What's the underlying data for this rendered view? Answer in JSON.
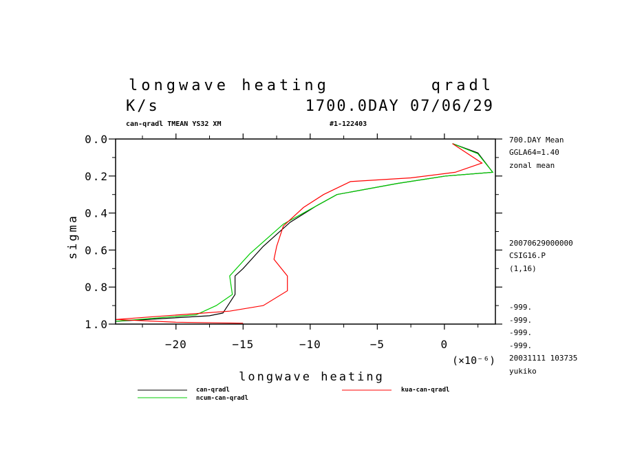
{
  "header": {
    "title_left": "longwave heating",
    "title_right": "qradl",
    "units": "K/s",
    "date_stamp": "1700.0DAY 07/06/29",
    "subtitle_left": "can-qradl TMEAN YS32 XM",
    "subtitle_right": "#1-122403"
  },
  "side_info": {
    "top": [
      "700.DAY Mean",
      "GGLA64=1.40",
      "zonal mean"
    ],
    "middle": [
      "20070629000000",
      "CSIG16.P",
      "(1,16)"
    ],
    "bottom": [
      "-999.",
      "-999.",
      "-999.",
      "-999.",
      "20031111 103735",
      "yukiko"
    ]
  },
  "chart_data": {
    "type": "line",
    "title": "longwave heating",
    "xlabel": "longwave heating",
    "ylabel": "sigma",
    "x_scale_label": "(×10⁻⁶)",
    "x_scale_exponent": -6,
    "xlim": [
      -24.5,
      3.8
    ],
    "ylim": [
      1.0,
      0.0
    ],
    "x_ticks": [
      -20,
      -15,
      -10,
      -5,
      0
    ],
    "x_tick_labels": [
      "−20",
      "−15",
      "−10",
      "−5",
      "0"
    ],
    "y_ticks": [
      0.0,
      0.2,
      0.4,
      0.6,
      0.8,
      1.0
    ],
    "y_tick_labels": [
      "0.0",
      "0.2",
      "0.4",
      "0.6",
      "0.8",
      "1.0"
    ],
    "series": [
      {
        "name": "can-qradl",
        "color": "#000000",
        "points": [
          [
            0.6,
            0.025
          ],
          [
            2.5,
            0.075
          ],
          [
            3.6,
            0.18
          ],
          [
            0.1,
            0.2
          ],
          [
            -3.5,
            0.24
          ],
          [
            -8.0,
            0.3
          ],
          [
            -9.5,
            0.36
          ],
          [
            -11.5,
            0.45
          ],
          [
            -13.5,
            0.58
          ],
          [
            -15.0,
            0.7
          ],
          [
            -15.6,
            0.74
          ],
          [
            -15.6,
            0.84
          ],
          [
            -16.5,
            0.94
          ],
          [
            -17.5,
            0.955
          ],
          [
            -24.5,
            0.985
          ]
        ]
      },
      {
        "name": "ncum-can-qradl",
        "color": "#00cc00",
        "points": [
          [
            0.6,
            0.025
          ],
          [
            2.5,
            0.08
          ],
          [
            3.6,
            0.18
          ],
          [
            0.1,
            0.2
          ],
          [
            -3.5,
            0.24
          ],
          [
            -8.0,
            0.3
          ],
          [
            -10.0,
            0.38
          ],
          [
            -12.0,
            0.46
          ],
          [
            -14.5,
            0.62
          ],
          [
            -16.0,
            0.74
          ],
          [
            -15.8,
            0.84
          ],
          [
            -17.0,
            0.9
          ],
          [
            -18.5,
            0.95
          ],
          [
            -24.5,
            0.985
          ]
        ]
      },
      {
        "name": "kua-can-qradl",
        "color": "#ff0000",
        "points": [
          [
            0.6,
            0.025
          ],
          [
            2.8,
            0.13
          ],
          [
            0.8,
            0.18
          ],
          [
            -2.5,
            0.21
          ],
          [
            -7.0,
            0.23
          ],
          [
            -9.0,
            0.3
          ],
          [
            -10.5,
            0.37
          ],
          [
            -12.0,
            0.47
          ],
          [
            -12.5,
            0.58
          ],
          [
            -12.7,
            0.65
          ],
          [
            -11.7,
            0.74
          ],
          [
            -11.7,
            0.82
          ],
          [
            -13.5,
            0.9
          ],
          [
            -16.0,
            0.93
          ],
          [
            -24.5,
            0.975
          ],
          [
            -20.0,
            0.99
          ],
          [
            -15.0,
            0.995
          ]
        ]
      }
    ]
  }
}
